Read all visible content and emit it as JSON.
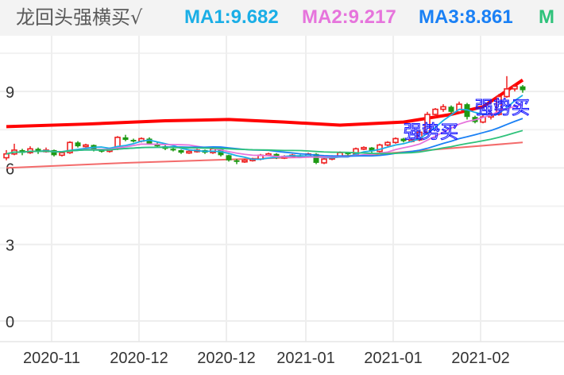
{
  "header": {
    "title": "龙回头强横买√",
    "ma1": "MA1:9.682",
    "ma2": "MA2:9.217",
    "ma3": "MA3:8.861",
    "ma4": "M"
  },
  "colors": {
    "up": "#ee2222",
    "down": "#1e9a14",
    "ma1": "#1aaee6",
    "ma2": "#e674dc",
    "ma3": "#1a80f5",
    "ma4": "#2ec27a",
    "ma5": "#f36b6b",
    "thick": "#ff0000",
    "signal": "#1a1aff"
  },
  "chart_data": {
    "type": "candlestick",
    "ylim": [
      -0.7,
      11.2
    ],
    "yticks": [
      "0",
      "3",
      "6",
      "9"
    ],
    "ytick_values": [
      0,
      3,
      6,
      9
    ],
    "xticks": [
      "2020-11",
      "2020-12",
      "2020-12",
      "2021-01",
      "2021-01",
      "2021-02"
    ],
    "xtick_candle_index": [
      6,
      17,
      28,
      38,
      49,
      60
    ],
    "grid": true,
    "candles": [
      [
        6.4,
        6.7,
        6.3,
        6.55
      ],
      [
        6.55,
        6.95,
        6.5,
        6.7
      ],
      [
        6.7,
        6.75,
        6.5,
        6.6
      ],
      [
        6.6,
        6.85,
        6.55,
        6.75
      ],
      [
        6.75,
        6.8,
        6.55,
        6.65
      ],
      [
        6.65,
        6.8,
        6.6,
        6.7
      ],
      [
        6.7,
        6.72,
        6.45,
        6.5
      ],
      [
        6.5,
        6.65,
        6.45,
        6.6
      ],
      [
        6.6,
        7.05,
        6.55,
        7.0
      ],
      [
        7.0,
        7.05,
        6.8,
        6.85
      ],
      [
        6.85,
        6.95,
        6.8,
        6.9
      ],
      [
        6.9,
        6.92,
        6.65,
        6.7
      ],
      [
        6.7,
        6.75,
        6.6,
        6.65
      ],
      [
        6.65,
        6.8,
        6.6,
        6.75
      ],
      [
        6.75,
        7.25,
        6.7,
        7.2
      ],
      [
        7.2,
        7.3,
        7.05,
        7.1
      ],
      [
        7.1,
        7.15,
        7.0,
        7.05
      ],
      [
        7.05,
        7.2,
        7.0,
        7.15
      ],
      [
        7.15,
        7.2,
        6.9,
        6.95
      ],
      [
        6.95,
        7.0,
        6.8,
        6.85
      ],
      [
        6.85,
        6.9,
        6.7,
        6.75
      ],
      [
        6.75,
        6.8,
        6.65,
        6.7
      ],
      [
        6.7,
        6.72,
        6.55,
        6.6
      ],
      [
        6.6,
        6.7,
        6.55,
        6.65
      ],
      [
        6.65,
        6.75,
        6.6,
        6.7
      ],
      [
        6.7,
        6.72,
        6.55,
        6.6
      ],
      [
        6.6,
        6.8,
        6.55,
        6.75
      ],
      [
        6.75,
        6.78,
        6.45,
        6.5
      ],
      [
        6.5,
        6.52,
        6.25,
        6.3
      ],
      [
        6.3,
        6.35,
        6.15,
        6.25
      ],
      [
        6.25,
        6.35,
        6.2,
        6.3
      ],
      [
        6.3,
        6.4,
        6.25,
        6.35
      ],
      [
        6.35,
        6.55,
        6.3,
        6.5
      ],
      [
        6.5,
        6.6,
        6.45,
        6.55
      ],
      [
        6.55,
        6.58,
        6.35,
        6.4
      ],
      [
        6.4,
        6.5,
        6.35,
        6.45
      ],
      [
        6.45,
        6.55,
        6.4,
        6.5
      ],
      [
        6.5,
        6.52,
        6.4,
        6.45
      ],
      [
        6.45,
        6.6,
        6.4,
        6.55
      ],
      [
        6.55,
        6.58,
        6.15,
        6.2
      ],
      [
        6.2,
        6.4,
        6.15,
        6.35
      ],
      [
        6.35,
        6.5,
        6.3,
        6.45
      ],
      [
        6.45,
        6.65,
        6.4,
        6.6
      ],
      [
        6.6,
        6.62,
        6.5,
        6.55
      ],
      [
        6.55,
        6.8,
        6.5,
        6.75
      ],
      [
        6.75,
        6.85,
        6.7,
        6.8
      ],
      [
        6.8,
        6.82,
        6.6,
        6.65
      ],
      [
        6.65,
        6.95,
        6.6,
        6.9
      ],
      [
        6.9,
        7.05,
        6.85,
        7.0
      ],
      [
        7.0,
        7.2,
        6.95,
        7.15
      ],
      [
        7.15,
        7.18,
        7.0,
        7.05
      ],
      [
        7.05,
        7.15,
        7.0,
        7.1
      ],
      [
        7.1,
        7.45,
        7.05,
        7.4
      ],
      [
        7.4,
        8.2,
        7.35,
        8.1
      ],
      [
        8.1,
        8.35,
        8.0,
        8.3
      ],
      [
        8.3,
        8.5,
        8.2,
        8.4
      ],
      [
        8.4,
        8.45,
        8.15,
        8.2
      ],
      [
        8.2,
        8.6,
        8.15,
        8.5
      ],
      [
        8.5,
        8.55,
        7.9,
        8.0
      ],
      [
        8.0,
        8.05,
        7.75,
        7.8
      ],
      [
        7.8,
        8.1,
        7.75,
        8.0
      ],
      [
        8.0,
        8.15,
        7.9,
        8.1
      ],
      [
        8.1,
        8.9,
        8.05,
        8.8
      ],
      [
        8.8,
        9.6,
        8.75,
        9.1
      ],
      [
        9.1,
        9.3,
        9.0,
        9.2
      ],
      [
        9.2,
        9.25,
        8.95,
        9.05
      ]
    ],
    "ma_periods": [
      5,
      10,
      20,
      30
    ],
    "ma5_line": [
      [
        0,
        6.0
      ],
      [
        15,
        6.2
      ],
      [
        30,
        6.35
      ],
      [
        45,
        6.5
      ],
      [
        55,
        6.75
      ],
      [
        65,
        7.0
      ]
    ],
    "thick_line": [
      [
        0,
        7.62
      ],
      [
        10,
        7.72
      ],
      [
        20,
        7.85
      ],
      [
        28,
        7.9
      ],
      [
        35,
        7.8
      ],
      [
        42,
        7.68
      ],
      [
        50,
        7.8
      ],
      [
        56,
        8.1
      ],
      [
        60,
        8.4
      ],
      [
        65,
        9.45
      ]
    ],
    "signals": [
      {
        "index": 51,
        "value": 7.5,
        "text": "强势买"
      },
      {
        "index": 60,
        "value": 8.45,
        "text": "强势买"
      }
    ]
  }
}
